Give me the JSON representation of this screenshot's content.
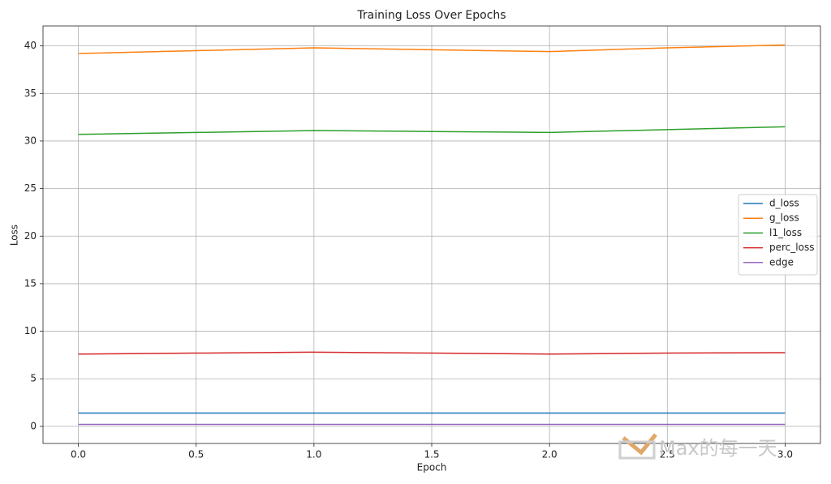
{
  "chart_data": {
    "type": "line",
    "title": "Training Loss Over Epochs",
    "x_label": "Epoch",
    "y_label": "Loss",
    "x": [
      0,
      0.5,
      1,
      1.5,
      2,
      2.5,
      3
    ],
    "series": [
      {
        "name": "d_loss",
        "color": "#1f77b4",
        "values": [
          1.4,
          1.4,
          1.4,
          1.4,
          1.4,
          1.4,
          1.4
        ]
      },
      {
        "name": "g_loss",
        "color": "#ff7f0e",
        "values": [
          39.2,
          39.5,
          39.8,
          39.6,
          39.4,
          39.8,
          40.1
        ]
      },
      {
        "name": "l1_loss",
        "color": "#2ca02c",
        "values": [
          30.7,
          30.9,
          31.1,
          31.0,
          30.9,
          31.2,
          31.5
        ]
      },
      {
        "name": "perc_loss",
        "color": "#d62728",
        "values": [
          7.6,
          7.7,
          7.8,
          7.7,
          7.6,
          7.7,
          7.75
        ]
      },
      {
        "name": "edge",
        "color": "#9467bd",
        "values": [
          0.2,
          0.2,
          0.2,
          0.2,
          0.2,
          0.2,
          0.2
        ]
      }
    ],
    "xlim": [
      -0.15,
      3.15
    ],
    "ylim": [
      -1.8,
      42.1
    ],
    "xticks": [
      {
        "value": 0,
        "label": "0.0"
      },
      {
        "value": 0.5,
        "label": "0.5"
      },
      {
        "value": 1,
        "label": "1.0"
      },
      {
        "value": 1.5,
        "label": "1.5"
      },
      {
        "value": 2,
        "label": "2.0"
      },
      {
        "value": 2.5,
        "label": "2.5"
      },
      {
        "value": 3,
        "label": "3.0"
      }
    ],
    "yticks": [
      0,
      5,
      10,
      15,
      20,
      25,
      30,
      35,
      40
    ],
    "grid": true,
    "legend": "right",
    "watermark": "Max的每一天"
  }
}
